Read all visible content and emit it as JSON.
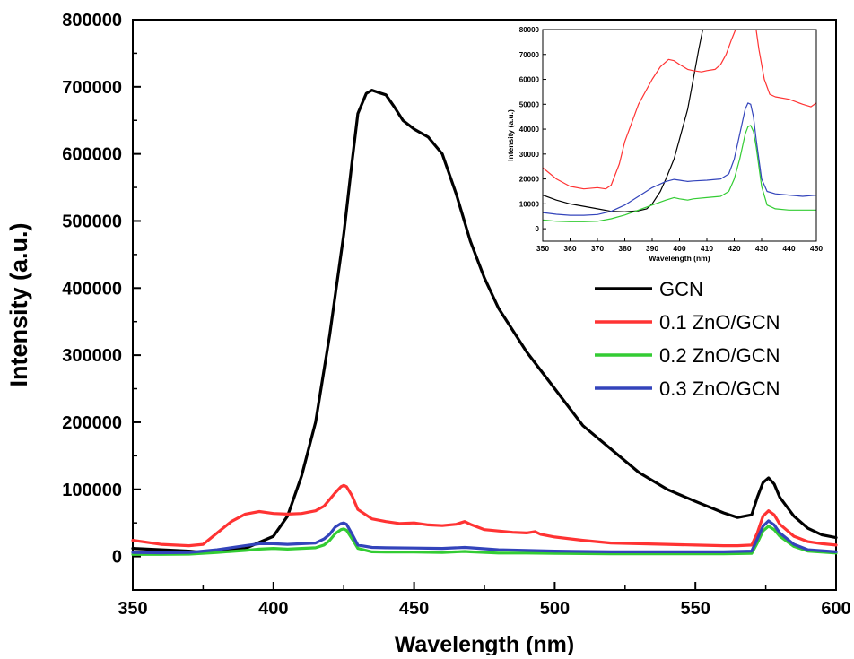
{
  "chart_data": [
    {
      "type": "line",
      "xlabel": "Wavelength (nm)",
      "ylabel": "Intensity (a.u.)",
      "xlim": [
        350,
        600
      ],
      "ylim": [
        -50000,
        800000
      ],
      "xticks": [
        "350",
        "400",
        "450",
        "500",
        "550",
        "600"
      ],
      "yticks": [
        "0",
        "100000",
        "200000",
        "300000",
        "400000",
        "500000",
        "600000",
        "700000",
        "800000"
      ],
      "legend_position": "right",
      "series": [
        {
          "name": "GCN",
          "color": "#000000",
          "x": [
            350,
            360,
            370,
            375,
            380,
            390,
            400,
            405,
            410,
            415,
            420,
            425,
            428,
            430,
            433,
            435,
            437,
            440,
            443,
            446,
            450,
            455,
            460,
            465,
            470,
            475,
            480,
            490,
            500,
            510,
            520,
            530,
            540,
            550,
            560,
            565,
            570,
            572,
            574,
            576,
            578,
            580,
            585,
            590,
            595,
            600
          ],
          "y": [
            12000,
            10000,
            8000,
            6000,
            7000,
            12000,
            30000,
            60000,
            120000,
            200000,
            330000,
            480000,
            590000,
            660000,
            690000,
            695000,
            692000,
            688000,
            670000,
            650000,
            637000,
            625000,
            600000,
            540000,
            470000,
            415000,
            370000,
            305000,
            250000,
            195000,
            160000,
            125000,
            100000,
            82000,
            65000,
            58000,
            62000,
            88000,
            110000,
            117000,
            108000,
            88000,
            60000,
            42000,
            32000,
            28000
          ]
        },
        {
          "name": "0.1 ZnO/GCN",
          "color": "#ff3333",
          "x": [
            350,
            360,
            370,
            375,
            380,
            385,
            390,
            395,
            400,
            405,
            410,
            415,
            418,
            420,
            422,
            424,
            425,
            426,
            428,
            430,
            435,
            440,
            445,
            450,
            455,
            460,
            465,
            468,
            470,
            475,
            480,
            485,
            490,
            493,
            495,
            500,
            510,
            520,
            530,
            540,
            550,
            560,
            565,
            570,
            572,
            574,
            576,
            578,
            580,
            585,
            590,
            595,
            600
          ],
          "y": [
            24000,
            18000,
            16000,
            18000,
            35000,
            52000,
            63000,
            67000,
            64000,
            63000,
            64000,
            68000,
            75000,
            85000,
            95000,
            104000,
            106000,
            104000,
            90000,
            70000,
            56000,
            52000,
            49000,
            50000,
            47000,
            46000,
            48000,
            52000,
            48000,
            40000,
            38000,
            36000,
            35000,
            37000,
            33000,
            29000,
            24000,
            20000,
            19000,
            18000,
            17000,
            16000,
            16000,
            17000,
            35000,
            60000,
            68000,
            62000,
            48000,
            30000,
            22000,
            19000,
            17000
          ]
        },
        {
          "name": "0.2 ZnO/GCN",
          "color": "#33cc33",
          "x": [
            350,
            360,
            370,
            380,
            390,
            395,
            400,
            405,
            410,
            415,
            418,
            420,
            422,
            424,
            425,
            426,
            428,
            430,
            435,
            440,
            450,
            460,
            468,
            470,
            480,
            490,
            500,
            520,
            540,
            560,
            570,
            572,
            574,
            576,
            578,
            580,
            585,
            590,
            600
          ],
          "y": [
            3000,
            3000,
            3500,
            6000,
            9000,
            11000,
            12000,
            11000,
            12000,
            13000,
            17000,
            24000,
            34000,
            40000,
            41000,
            39000,
            26000,
            12000,
            7000,
            6500,
            6500,
            6000,
            7500,
            7000,
            5000,
            5000,
            4500,
            4000,
            4000,
            4000,
            4500,
            20000,
            38000,
            45000,
            40000,
            30000,
            15000,
            8000,
            5000
          ]
        },
        {
          "name": "0.3 ZnO/GCN",
          "color": "#3344bb",
          "x": [
            350,
            360,
            370,
            380,
            390,
            395,
            400,
            405,
            410,
            415,
            418,
            420,
            422,
            424,
            425,
            426,
            428,
            430,
            435,
            440,
            450,
            460,
            468,
            470,
            480,
            490,
            500,
            520,
            540,
            560,
            570,
            572,
            574,
            576,
            578,
            580,
            585,
            590,
            600
          ],
          "y": [
            6000,
            5500,
            6000,
            10000,
            16000,
            19000,
            19000,
            18000,
            19000,
            20000,
            26000,
            33000,
            44000,
            49000,
            50000,
            48000,
            33000,
            17000,
            13500,
            13000,
            12500,
            12000,
            13500,
            13000,
            10000,
            9000,
            8000,
            7000,
            7000,
            7000,
            8000,
            26000,
            45000,
            53000,
            47000,
            35000,
            18000,
            10000,
            7000
          ]
        }
      ]
    },
    {
      "type": "line",
      "xlabel": "Wavelength (nm)",
      "ylabel": "Intensity (a.u.)",
      "xlim": [
        350,
        450
      ],
      "ylim": [
        -5000,
        80000
      ],
      "xticks": [
        "350",
        "360",
        "370",
        "380",
        "390",
        "400",
        "410",
        "420",
        "430",
        "440",
        "450"
      ],
      "yticks": [
        "0",
        "10000",
        "20000",
        "30000",
        "40000",
        "50000",
        "60000",
        "70000",
        "80000"
      ],
      "series": [
        {
          "name": "GCN",
          "color": "#000000",
          "x": [
            350,
            355,
            360,
            365,
            370,
            375,
            380,
            385,
            388,
            390,
            393,
            395,
            398,
            400,
            403,
            405,
            407,
            408.5
          ],
          "y": [
            13500,
            11500,
            10000,
            9000,
            8000,
            7000,
            6800,
            7200,
            8000,
            10000,
            15000,
            20000,
            28000,
            36000,
            48000,
            60000,
            72000,
            80000
          ]
        },
        {
          "name": "0.1 ZnO/GCN",
          "color": "#ff3333",
          "x": [
            350,
            355,
            360,
            365,
            370,
            373,
            375,
            378,
            380,
            385,
            390,
            393,
            396,
            398,
            400,
            403,
            405,
            408,
            410,
            413,
            415,
            417,
            419,
            420.5,
            428,
            429,
            431,
            433,
            435,
            440,
            445,
            448,
            450
          ],
          "y": [
            24500,
            20000,
            17000,
            16000,
            16500,
            16000,
            17500,
            26000,
            35000,
            50000,
            60000,
            65000,
            68000,
            67500,
            66000,
            64000,
            63500,
            63000,
            63500,
            64000,
            66000,
            70000,
            76000,
            80000,
            80000,
            72000,
            60000,
            54000,
            53000,
            52000,
            50000,
            49000,
            50500
          ]
        },
        {
          "name": "0.2 ZnO/GCN",
          "color": "#33cc33",
          "x": [
            350,
            355,
            360,
            365,
            370,
            375,
            380,
            385,
            390,
            395,
            398,
            400,
            403,
            405,
            410,
            415,
            418,
            420,
            422,
            424,
            425,
            426,
            427,
            428,
            430,
            432,
            435,
            440,
            445,
            450
          ],
          "y": [
            3500,
            3000,
            2800,
            2800,
            3000,
            4000,
            5500,
            7500,
            9500,
            11500,
            12500,
            12000,
            11500,
            12000,
            12500,
            13000,
            15000,
            20000,
            28000,
            38000,
            41000,
            41500,
            39000,
            33000,
            17000,
            9500,
            8000,
            7500,
            7500,
            7500
          ]
        },
        {
          "name": "0.3 ZnO/GCN",
          "color": "#3344bb",
          "x": [
            350,
            355,
            360,
            365,
            370,
            375,
            380,
            385,
            390,
            395,
            398,
            400,
            403,
            405,
            410,
            415,
            418,
            420,
            422,
            424,
            425,
            426,
            427,
            428,
            430,
            432,
            435,
            440,
            445,
            450
          ],
          "y": [
            6500,
            5800,
            5400,
            5400,
            5700,
            7000,
            9500,
            13000,
            16500,
            19000,
            19800,
            19500,
            19000,
            19200,
            19500,
            20000,
            22000,
            28000,
            38000,
            48000,
            50500,
            50000,
            45000,
            36000,
            20000,
            15000,
            14000,
            13500,
            13000,
            13500
          ]
        }
      ]
    }
  ]
}
